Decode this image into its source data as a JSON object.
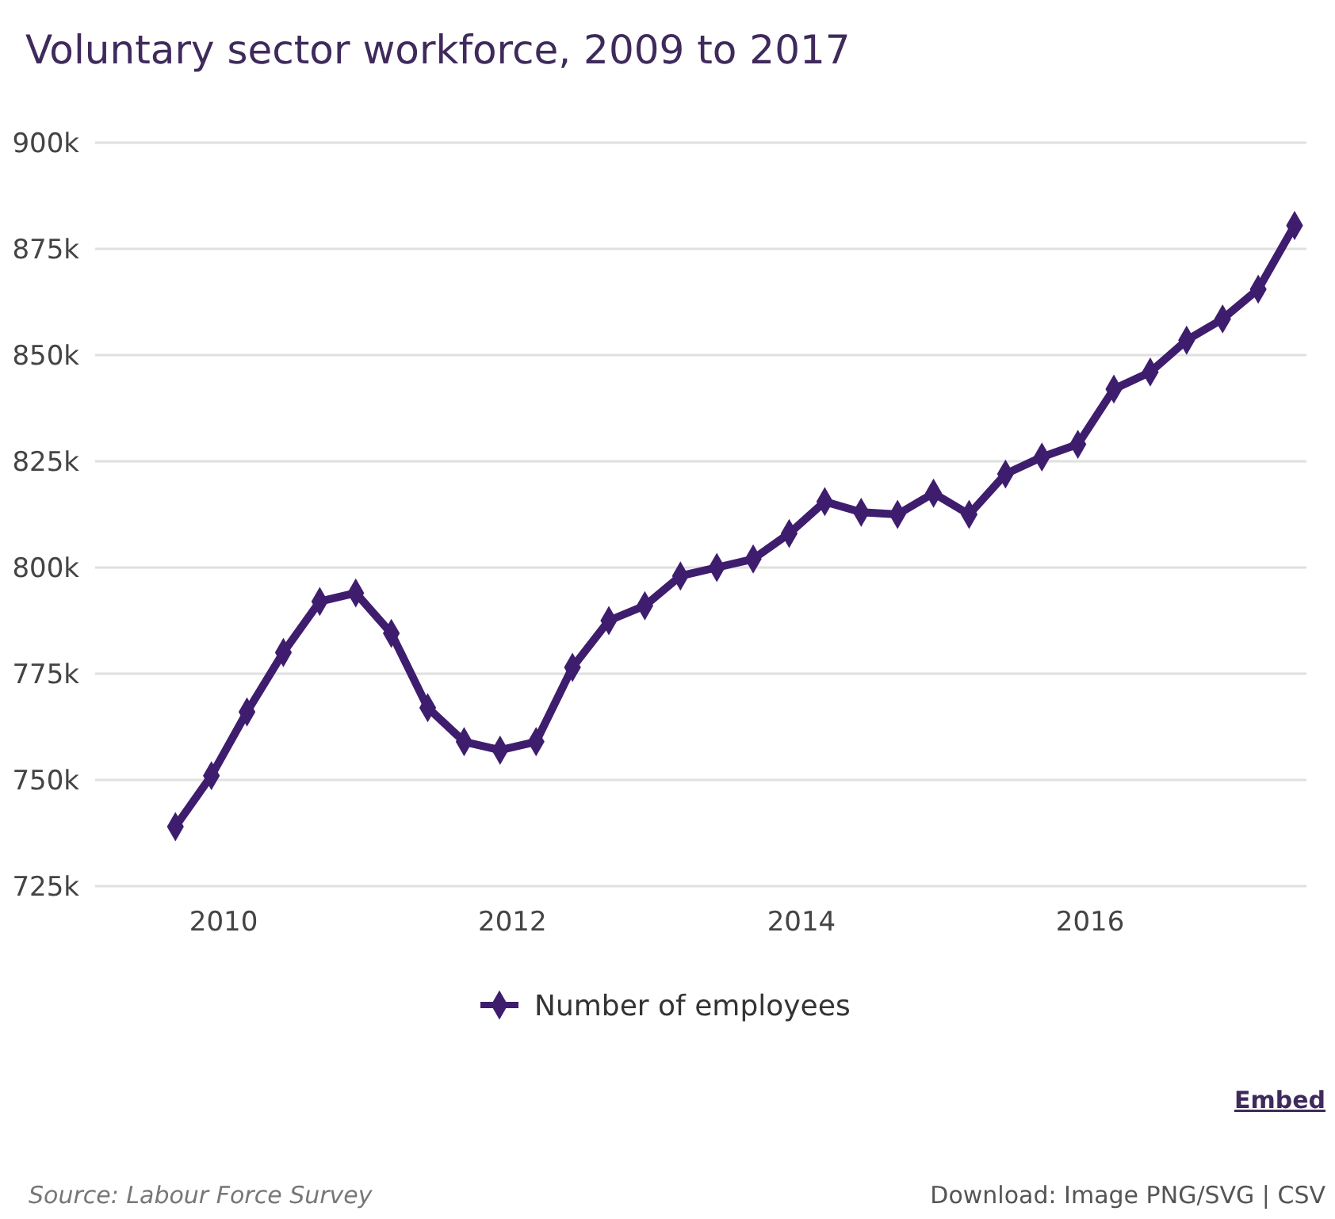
{
  "chart_data": {
    "type": "line",
    "title": "Voluntary sector workforce, 2009 to 2017",
    "x": [
      "2009-09",
      "2009-12",
      "2010-03",
      "2010-06",
      "2010-09",
      "2010-12",
      "2011-03",
      "2011-06",
      "2011-09",
      "2011-12",
      "2012-03",
      "2012-06",
      "2012-09",
      "2012-12",
      "2013-03",
      "2013-06",
      "2013-09",
      "2013-12",
      "2014-03",
      "2014-06",
      "2014-09",
      "2014-12",
      "2015-03",
      "2015-06",
      "2015-09",
      "2015-12",
      "2016-03",
      "2016-06",
      "2016-09",
      "2016-12",
      "2017-03",
      "2017-06"
    ],
    "series": [
      {
        "name": "Number of employees",
        "color": "#3f1d6e",
        "values": [
          739000,
          751000,
          766000,
          780000,
          792000,
          794000,
          784500,
          767000,
          759000,
          757000,
          759000,
          776500,
          787500,
          791000,
          798000,
          800000,
          802000,
          808000,
          815500,
          813000,
          812500,
          817500,
          812500,
          822000,
          826000,
          829000,
          842000,
          846000,
          853500,
          858500,
          865500,
          880500
        ]
      }
    ],
    "xlim": [
      "2009-02-10",
      "2017-07-01"
    ],
    "xticks": [
      {
        "value": "2010",
        "label": "2010"
      },
      {
        "value": "2012",
        "label": "2012"
      },
      {
        "value": "2014",
        "label": "2014"
      },
      {
        "value": "2016",
        "label": "2016"
      }
    ],
    "ylim": [
      725000,
      900000
    ],
    "yticks": [
      {
        "value": 725000,
        "label": "725k"
      },
      {
        "value": 750000,
        "label": "750k"
      },
      {
        "value": 775000,
        "label": "775k"
      },
      {
        "value": 800000,
        "label": "800k"
      },
      {
        "value": 825000,
        "label": "825k"
      },
      {
        "value": 850000,
        "label": "850k"
      },
      {
        "value": 875000,
        "label": "875k"
      },
      {
        "value": 900000,
        "label": "900k"
      }
    ],
    "grid": "y",
    "marker": "diamond",
    "line_style": "solid",
    "legend": "bottom",
    "annotations": [
      "Embed",
      "Source: Labour Force Survey",
      "Download: Image PNG/SVG | CSV"
    ]
  }
}
